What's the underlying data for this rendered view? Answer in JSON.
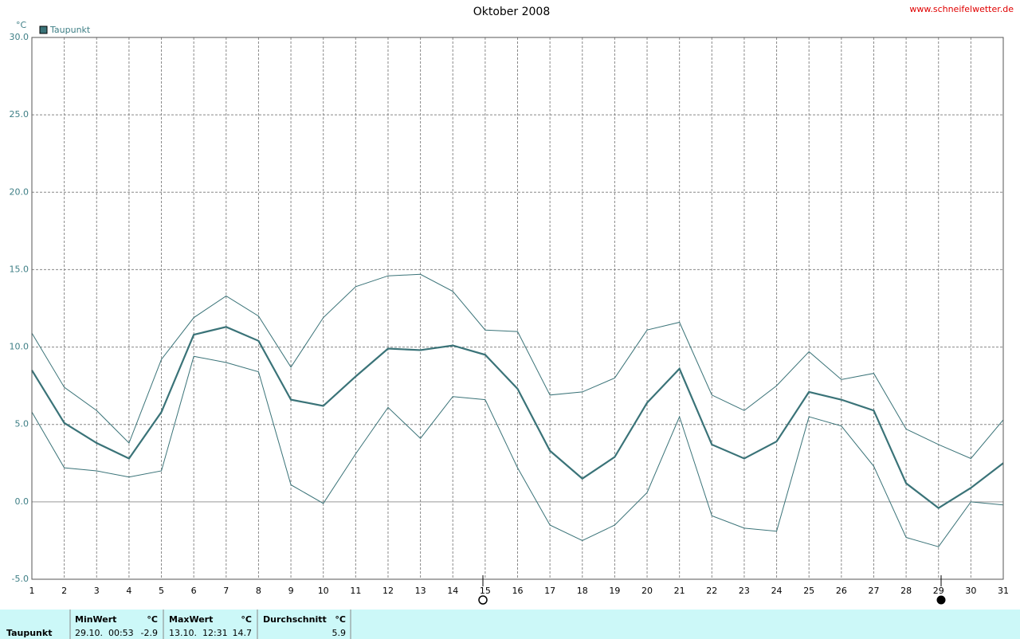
{
  "chart_data": {
    "type": "line",
    "title": "Oktober 2008",
    "source": "www.schneifelwetter.de",
    "y_label": "°C",
    "x": [
      1,
      2,
      3,
      4,
      5,
      6,
      7,
      8,
      9,
      10,
      11,
      12,
      13,
      14,
      15,
      16,
      17,
      18,
      19,
      20,
      21,
      22,
      23,
      24,
      25,
      26,
      27,
      28,
      29,
      30,
      31
    ],
    "xlim": [
      1,
      31
    ],
    "xticks": [
      1,
      2,
      3,
      4,
      5,
      6,
      7,
      8,
      9,
      10,
      11,
      12,
      13,
      14,
      15,
      16,
      17,
      18,
      19,
      20,
      21,
      22,
      23,
      24,
      25,
      26,
      27,
      28,
      29,
      30,
      31
    ],
    "ylim": [
      -5,
      30
    ],
    "yticks": [
      {
        "value": -5,
        "label": "-5.0"
      },
      {
        "value": 0,
        "label": "0.0"
      },
      {
        "value": 5,
        "label": "5.0"
      },
      {
        "value": 10,
        "label": "10.0"
      },
      {
        "value": 15,
        "label": "15.0"
      },
      {
        "value": 20,
        "label": "20.0"
      },
      {
        "value": 25,
        "label": "25.0"
      },
      {
        "value": 30,
        "label": "30.0"
      }
    ],
    "grid": true,
    "series": [
      {
        "name": "Taupunkt",
        "color": "#3a7378",
        "values": [
          8.5,
          5.1,
          3.8,
          2.8,
          5.8,
          10.8,
          11.3,
          10.4,
          6.6,
          6.2,
          8.1,
          9.9,
          9.8,
          10.1,
          9.5,
          7.3,
          3.3,
          1.5,
          2.9,
          6.4,
          8.6,
          3.7,
          2.8,
          3.9,
          7.1,
          6.6,
          5.9,
          1.2,
          -0.4,
          0.9,
          2.5
        ]
      },
      {
        "color": "#3a7378",
        "values": [
          10.9,
          7.4,
          5.9,
          3.8,
          9.2,
          11.9,
          13.3,
          12.0,
          8.7,
          11.9,
          13.9,
          14.6,
          14.7,
          13.6,
          11.1,
          11.0,
          6.9,
          7.1,
          8.0,
          11.1,
          11.6,
          6.9,
          5.9,
          7.5,
          9.7,
          7.9,
          8.3,
          4.7,
          3.7,
          2.8,
          5.3
        ]
      },
      {
        "color": "#3a7378",
        "values": [
          5.8,
          2.2,
          2.0,
          1.6,
          2.0,
          9.4,
          9.0,
          8.4,
          1.1,
          -0.1,
          3.1,
          6.1,
          4.1,
          6.8,
          6.6,
          2.2,
          -1.5,
          -2.5,
          -1.5,
          0.6,
          5.5,
          -0.9,
          -1.7,
          -1.9,
          5.5,
          4.9,
          2.3,
          -2.3,
          -2.9,
          0.0,
          -0.2
        ]
      }
    ]
  },
  "summary_table": {
    "row_label": "Taupunkt",
    "headers": [
      "MinWert",
      "°C",
      "MaxWert",
      "°C",
      "Durchschnitt",
      "°C"
    ],
    "cells": [
      "29.10.  00:53",
      "-2.9",
      "13.10.  12:31",
      "14.7",
      "5.9"
    ]
  }
}
